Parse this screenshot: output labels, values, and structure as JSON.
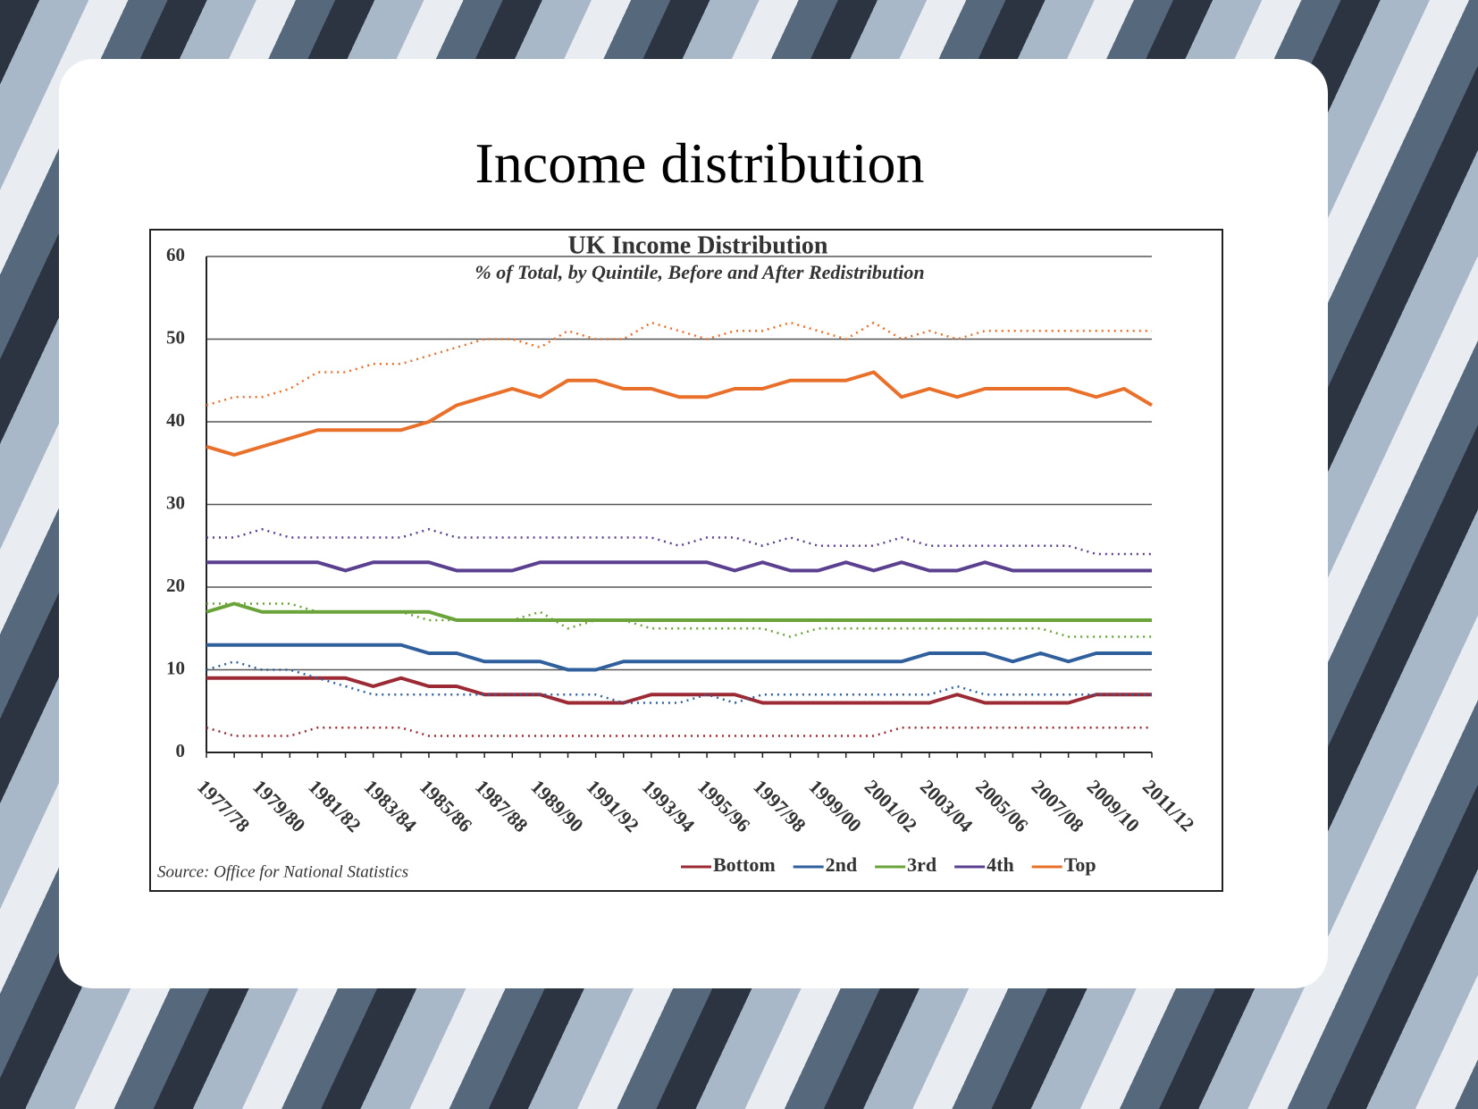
{
  "slide_title": "Income distribution",
  "chart_data": {
    "type": "line",
    "title": "UK Income Distribution",
    "subtitle": "% of Total, by Quintile, Before and After Redistribution",
    "source": "Source: Office for National Statistics",
    "categories": [
      "1977/78",
      null,
      "1979/80",
      null,
      "1981/82",
      null,
      "1983/84",
      null,
      "1985/86",
      null,
      "1987/88",
      null,
      "1989/90",
      null,
      "1991/92",
      null,
      "1993/94",
      null,
      "1995/96",
      null,
      "1997/98",
      null,
      "1999/00",
      null,
      "2001/02",
      null,
      "2003/04",
      null,
      "2005/06",
      null,
      "2007/08",
      null,
      "2009/10",
      null,
      "2011/12"
    ],
    "ylim": [
      0,
      60
    ],
    "yticks": [
      0,
      10,
      20,
      30,
      40,
      50,
      60
    ],
    "grid": true,
    "series": [
      {
        "name": "Bottom",
        "color": "#9b2a35",
        "dash": "solid",
        "values": [
          9,
          9,
          9,
          9,
          9,
          9,
          8,
          9,
          8,
          8,
          7,
          7,
          7,
          6,
          6,
          6,
          7,
          7,
          7,
          7,
          6,
          6,
          6,
          6,
          6,
          6,
          6,
          7,
          6,
          6,
          6,
          6,
          7,
          7,
          7
        ]
      },
      {
        "name": "2nd",
        "color": "#2f5f9c",
        "dash": "solid",
        "values": [
          13,
          13,
          13,
          13,
          13,
          13,
          13,
          13,
          12,
          12,
          11,
          11,
          11,
          10,
          10,
          11,
          11,
          11,
          11,
          11,
          11,
          11,
          11,
          11,
          11,
          11,
          12,
          12,
          12,
          11,
          12,
          11,
          12,
          12,
          12
        ]
      },
      {
        "name": "3rd",
        "color": "#6aa33a",
        "dash": "solid",
        "values": [
          17,
          18,
          17,
          17,
          17,
          17,
          17,
          17,
          17,
          16,
          16,
          16,
          16,
          16,
          16,
          16,
          16,
          16,
          16,
          16,
          16,
          16,
          16,
          16,
          16,
          16,
          16,
          16,
          16,
          16,
          16,
          16,
          16,
          16,
          16
        ]
      },
      {
        "name": "4th",
        "color": "#5b408f",
        "dash": "solid",
        "values": [
          23,
          23,
          23,
          23,
          23,
          22,
          23,
          23,
          23,
          22,
          22,
          22,
          23,
          23,
          23,
          23,
          23,
          23,
          23,
          22,
          23,
          22,
          22,
          23,
          22,
          23,
          22,
          22,
          23,
          22,
          22,
          22,
          22,
          22,
          22
        ]
      },
      {
        "name": "Top",
        "color": "#e8702a",
        "dash": "solid",
        "values": [
          37,
          36,
          37,
          38,
          39,
          39,
          39,
          39,
          40,
          42,
          43,
          44,
          43,
          45,
          45,
          44,
          44,
          43,
          43,
          44,
          44,
          45,
          45,
          45,
          46,
          43,
          44,
          43,
          44,
          44,
          44,
          44,
          43,
          44,
          42
        ]
      },
      {
        "color": "#9b2a35",
        "dash": "dotted",
        "values": [
          3,
          2,
          2,
          2,
          3,
          3,
          3,
          3,
          2,
          2,
          2,
          2,
          2,
          2,
          2,
          2,
          2,
          2,
          2,
          2,
          2,
          2,
          2,
          2,
          2,
          3,
          3,
          3,
          3,
          3,
          3,
          3,
          3,
          3,
          3
        ]
      },
      {
        "color": "#2f5f9c",
        "dash": "dotted",
        "values": [
          10,
          11,
          10,
          10,
          9,
          8,
          7,
          7,
          7,
          7,
          7,
          7,
          7,
          7,
          7,
          6,
          6,
          6,
          7,
          6,
          7,
          7,
          7,
          7,
          7,
          7,
          7,
          8,
          7,
          7,
          7,
          7,
          7,
          7,
          7
        ]
      },
      {
        "color": "#6aa33a",
        "dash": "dotted",
        "values": [
          18,
          18,
          18,
          18,
          17,
          17,
          17,
          17,
          16,
          16,
          16,
          16,
          17,
          15,
          16,
          16,
          15,
          15,
          15,
          15,
          15,
          14,
          15,
          15,
          15,
          15,
          15,
          15,
          15,
          15,
          15,
          14,
          14,
          14,
          14
        ]
      },
      {
        "color": "#5b408f",
        "dash": "dotted",
        "values": [
          26,
          26,
          27,
          26,
          26,
          26,
          26,
          26,
          27,
          26,
          26,
          26,
          26,
          26,
          26,
          26,
          26,
          25,
          26,
          26,
          25,
          26,
          25,
          25,
          25,
          26,
          25,
          25,
          25,
          25,
          25,
          25,
          24,
          24,
          24
        ]
      },
      {
        "color": "#e8702a",
        "dash": "dotted",
        "values": [
          42,
          43,
          43,
          44,
          46,
          46,
          47,
          47,
          48,
          49,
          50,
          50,
          49,
          51,
          50,
          50,
          52,
          51,
          50,
          51,
          51,
          52,
          51,
          50,
          52,
          50,
          51,
          50,
          51,
          51,
          51,
          51,
          51,
          51,
          51
        ]
      }
    ]
  }
}
